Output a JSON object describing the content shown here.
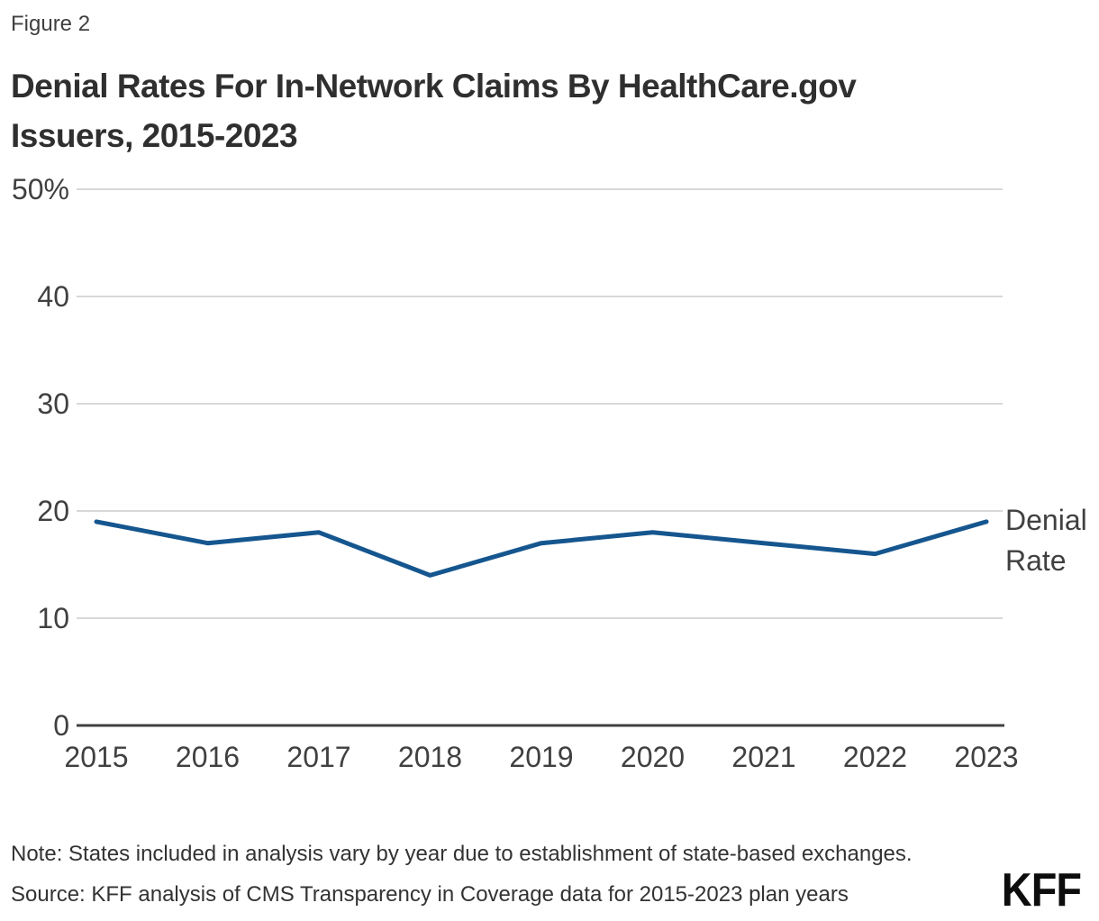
{
  "figure_label": "Figure 2",
  "title": {
    "line1": "Denial Rates For In-Network Claims By HealthCare.gov",
    "line2": "Issuers, 2015-2023"
  },
  "chart_data": {
    "type": "line",
    "title": "Denial Rates For In-Network Claims By HealthCare.gov Issuers, 2015-2023",
    "x": [
      "2015",
      "2016",
      "2017",
      "2018",
      "2019",
      "2020",
      "2021",
      "2022",
      "2023"
    ],
    "series": [
      {
        "name": "Denial Rate",
        "values": [
          19,
          17,
          18,
          14,
          17,
          18,
          17,
          16,
          19
        ]
      }
    ],
    "xlabel": "",
    "ylabel": "",
    "ylim": [
      0,
      50
    ],
    "y_tick_values": [
      0,
      10,
      20,
      30,
      40,
      50
    ],
    "y_tick_labels": [
      "0",
      "10",
      "20",
      "30",
      "40",
      "50%"
    ],
    "grid": true,
    "legend_position": "right-of-line-end",
    "line_color": "#15568f"
  },
  "note": "Note: States included in analysis vary by year due to establishment of state-based exchanges.",
  "source": "Source: KFF analysis of CMS Transparency in Coverage data for 2015-2023 plan years",
  "logo_text": "KFF",
  "colors": {
    "line": "#15568f",
    "grid": "#cccccc",
    "axis": "#404040",
    "label": "#404040",
    "title": "#2f2f2f",
    "logo": "#0d0d0d"
  }
}
